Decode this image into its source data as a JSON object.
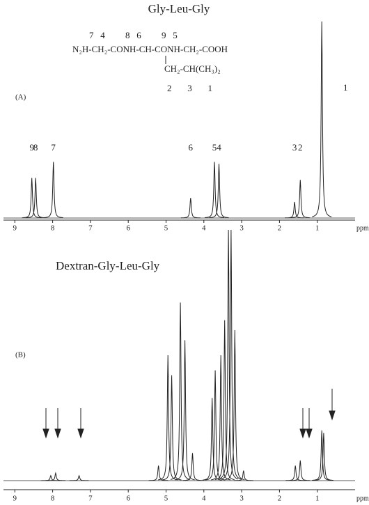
{
  "chart_data": [
    {
      "type": "spectrum",
      "title": "Gly-Leu-Gly",
      "panel": "(A)",
      "structure": {
        "numbers_top": "7   4         8   6         9   5",
        "formula": "N₂H-CH₂-CONH-CH-CONH-CH₂-COOH",
        "branch": "CH₂-CH(CH₃)₂",
        "numbers_bottom": "2       3       1"
      },
      "x": [
        8.55,
        8.45,
        7.98,
        4.35,
        3.72,
        3.6,
        1.6,
        1.45,
        0.88
      ],
      "values": [
        20,
        20,
        28,
        10,
        28,
        27,
        8,
        19,
        98
      ],
      "peak_labels": [
        "9",
        "8",
        "7",
        "6",
        "5",
        "4",
        "3",
        "2",
        "1"
      ],
      "xlim": [
        9.3,
        0
      ],
      "ylim": [
        0,
        100
      ],
      "xticks": [
        9,
        8,
        7,
        6,
        5,
        4,
        3,
        2,
        1
      ],
      "xlabel": "ppm",
      "color": "#222222"
    },
    {
      "type": "spectrum",
      "title": "Dextran-Gly-Leu-Gly",
      "panel": "(B)",
      "x": [
        8.05,
        7.92,
        7.3,
        5.2,
        4.95,
        4.85,
        4.62,
        4.5,
        4.3,
        3.78,
        3.7,
        3.55,
        3.45,
        3.35,
        3.28,
        3.18,
        2.95,
        1.58,
        1.45,
        0.88,
        0.83
      ],
      "values": [
        2,
        3,
        2,
        6,
        50,
        42,
        71,
        56,
        11,
        33,
        44,
        50,
        64,
        100,
        100,
        60,
        4,
        6,
        8,
        20,
        19
      ],
      "xlim": [
        9.3,
        0
      ],
      "ylim": [
        0,
        100
      ],
      "xticks": [
        9,
        8,
        7,
        6,
        5,
        4,
        3,
        2,
        1
      ],
      "xlabel": "ppm",
      "color": "#222222"
    }
  ]
}
